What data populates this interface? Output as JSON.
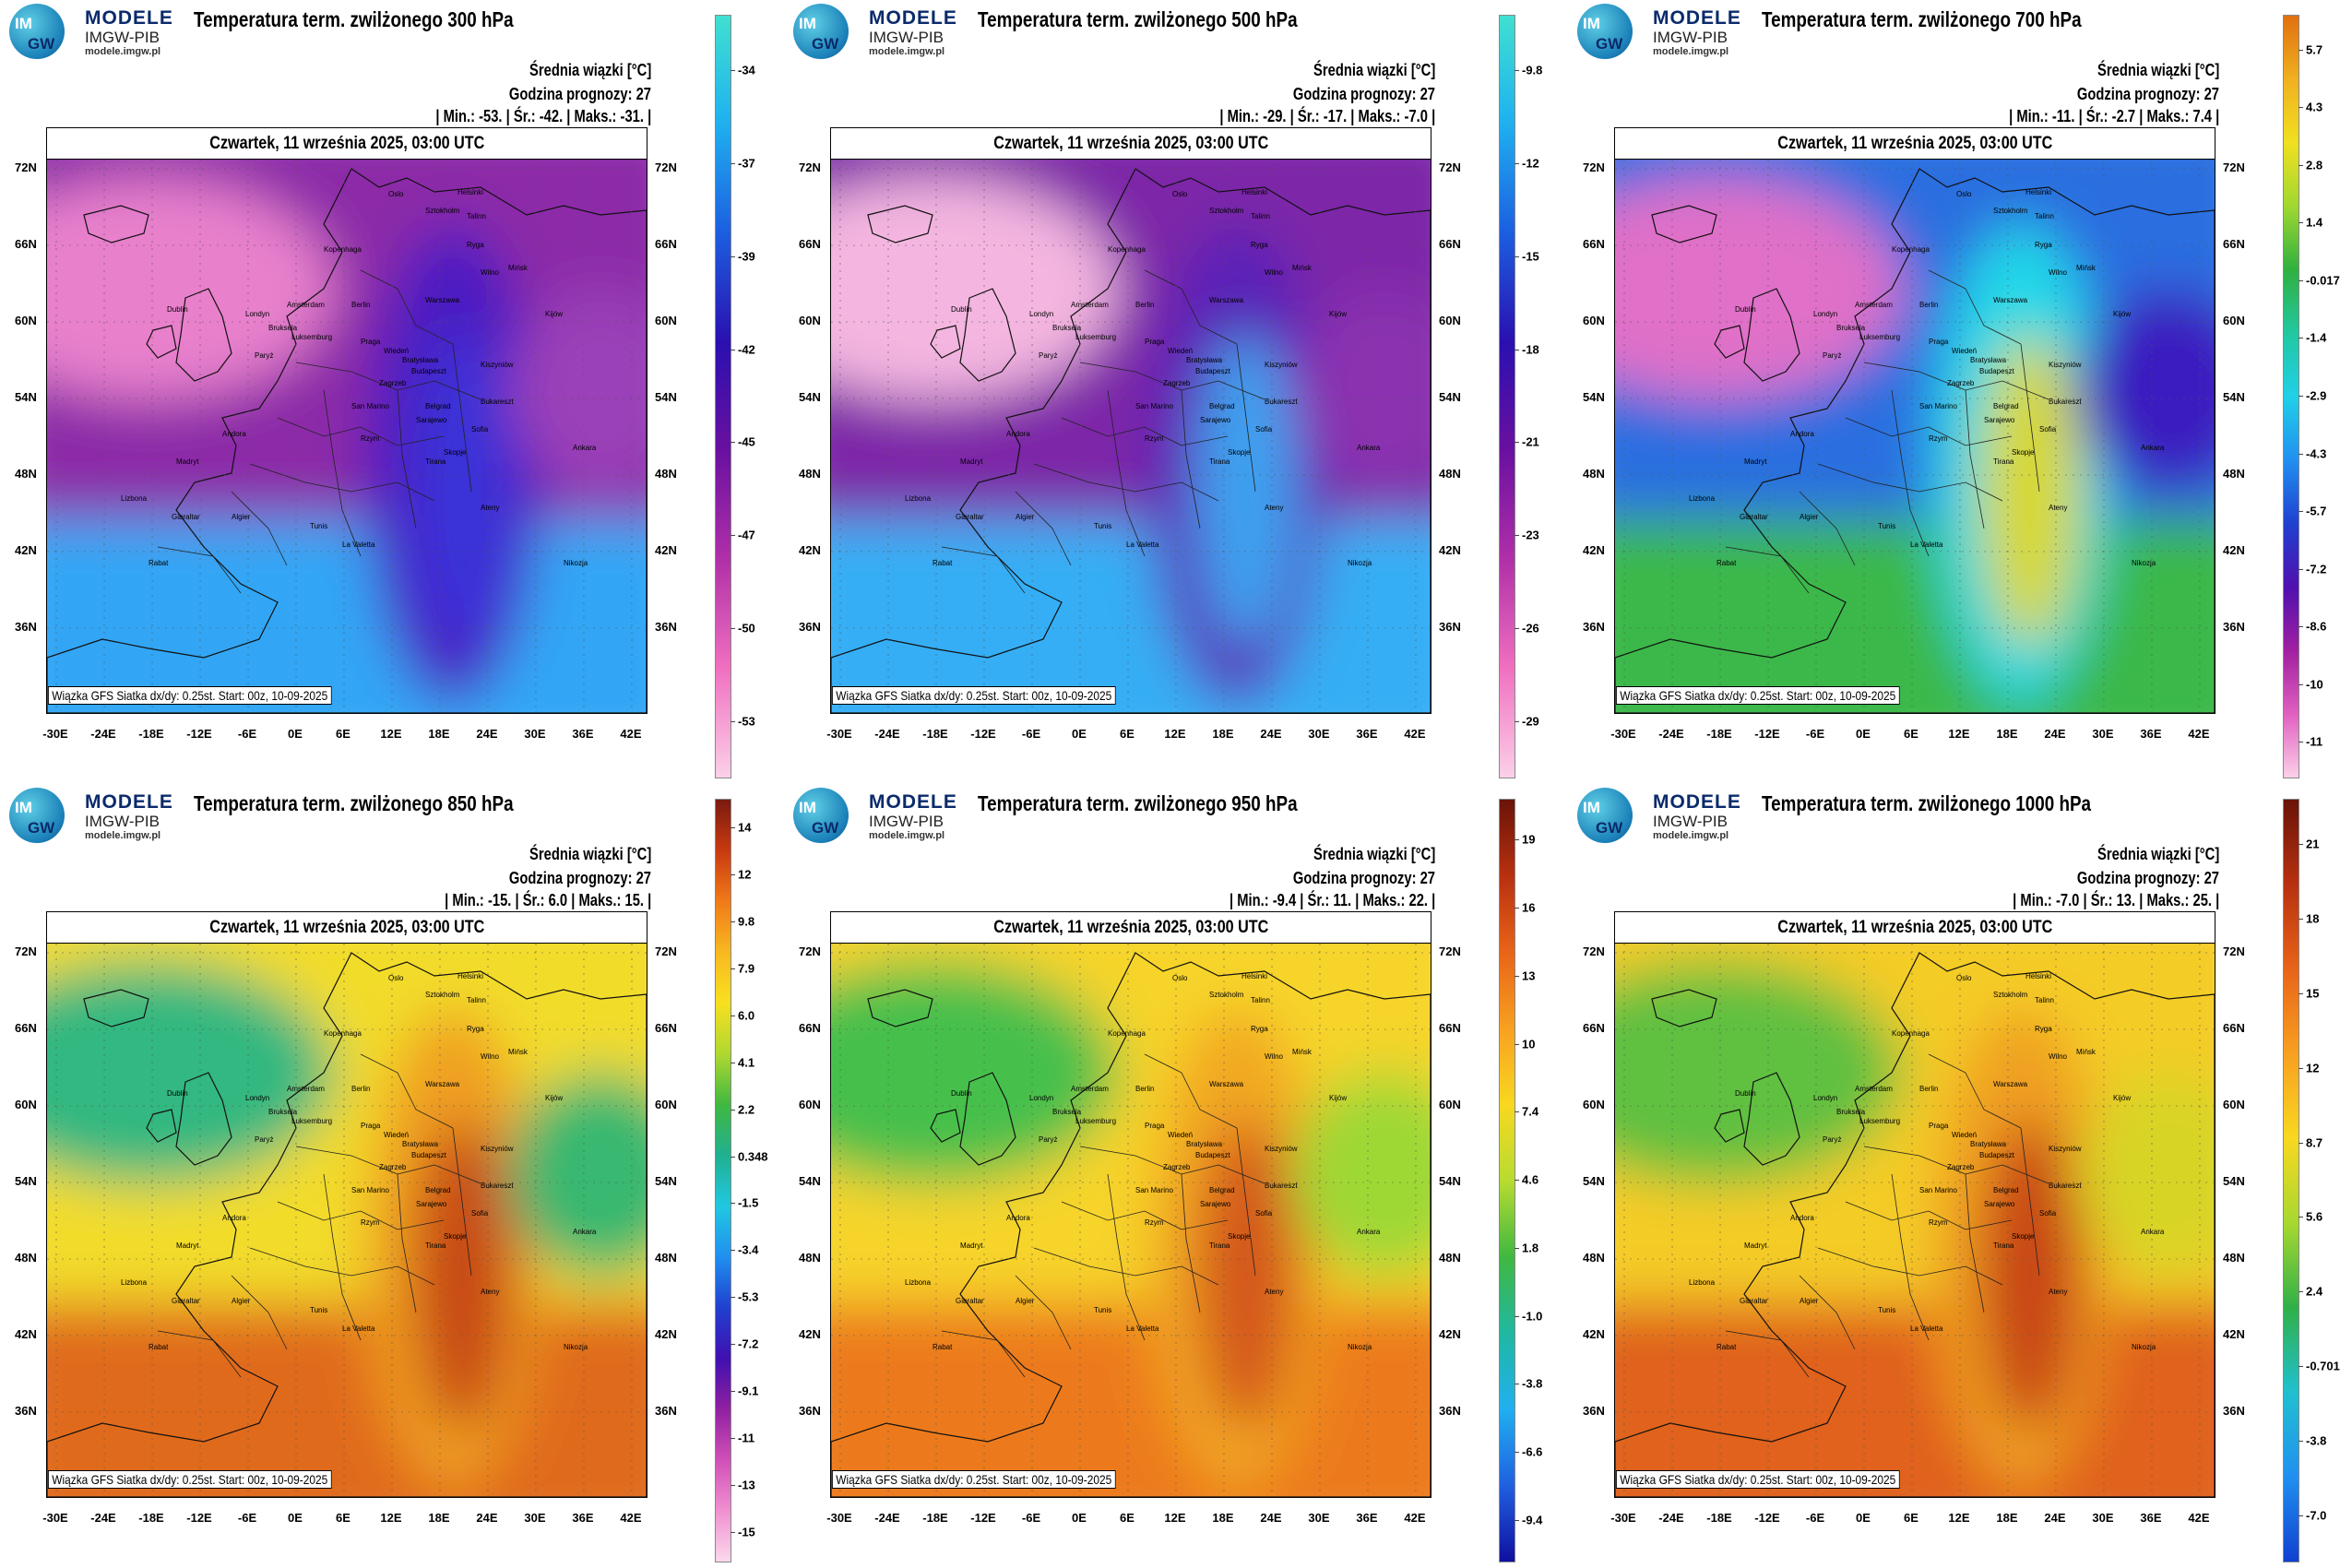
{
  "logo": {
    "abbr1": "IM",
    "abbr2": "GW",
    "line1": "MODELE",
    "line2": "IMGW-PIB",
    "line3": "modele.imgw.pl"
  },
  "common": {
    "meta_title": "Średnia wiązki [°C]",
    "forecast_hour": "Godzina prognozy: 27",
    "date": "Czwartek, 11 września 2025, 03:00 UTC",
    "footer": "Wiązka GFS Siatka dx/dy: 0.25st. Start: 00z, 10-09-2025",
    "lat_labels": [
      "72N",
      "66N",
      "60N",
      "54N",
      "48N",
      "42N",
      "36N"
    ],
    "lon_labels": [
      "-30E",
      "-24E",
      "-18E",
      "-12E",
      "-6E",
      "0E",
      "6E",
      "12E",
      "18E",
      "24E",
      "30E",
      "36E",
      "42E"
    ]
  },
  "cities": [
    "Oslo",
    "Helsinki",
    "Sztokholm",
    "Talinn",
    "Ryga",
    "Wilno",
    "Mińsk",
    "Kijów",
    "Warszawa",
    "Berlin",
    "Amsterdam",
    "Londyn",
    "Bruksela",
    "Luksemburg",
    "Paryż",
    "Praga",
    "Wiedeń",
    "Bratysława",
    "Budapeszt",
    "Kiszyniów",
    "Bukareszt",
    "Belgrad",
    "Sofia",
    "Zagrzeb",
    "Sarajewo",
    "San Marino",
    "Rzym",
    "Skopje",
    "Tirana",
    "Ateny",
    "Madryt",
    "Lizbona",
    "Andora",
    "Gibraltar",
    "Algier",
    "Tunis",
    "La Valetta",
    "Rabat",
    "Ankara",
    "Nikozja",
    "Kopenhaga",
    "Dublin"
  ],
  "panels": [
    {
      "title": "Temperatura term. zwilżonego 300 hPa",
      "min": "-53.",
      "avg": "-42.",
      "max": "-31.",
      "cbar_labels": [
        "-34",
        "-37",
        "-39",
        "-42",
        "-45",
        "-47",
        "-50",
        "-53"
      ],
      "cbar_colors": [
        "#40e0d0",
        "#1fb0f0",
        "#1c5ee0",
        "#2a10b0",
        "#6a10a0",
        "#b030a8",
        "#f070c0",
        "#fbd0e8"
      ],
      "colors": {
        "base": "#8c2ba8",
        "north_west": "#e880cc",
        "south": "#33a6f5",
        "belt": "#4b1bc2",
        "belt_core": "#3a30d8",
        "ne": "#9a3fb8"
      }
    },
    {
      "title": "Temperatura term. zwilżonego 500 hPa",
      "min": "-29.",
      "avg": "-17.",
      "max": "-7.0",
      "cbar_labels": [
        "-9.8",
        "-12",
        "-15",
        "-18",
        "-21",
        "-23",
        "-26",
        "-29"
      ],
      "cbar_colors": [
        "#40e0d0",
        "#1fb0f0",
        "#1c5ee0",
        "#2a10b0",
        "#6a10a0",
        "#b030a8",
        "#f070c0",
        "#fbd0e8"
      ],
      "colors": {
        "base": "#7d27a8",
        "north_west": "#f4b6e0",
        "south": "#35aef5",
        "belt": "#5a23b8",
        "belt_core": "#3ea0f0",
        "ne": "#8a30b0"
      }
    },
    {
      "title": "Temperatura term. zwilżonego 700 hPa",
      "min": "-11.",
      "avg": "-2.7",
      "max": "7.4",
      "cbar_labels": [
        "5.7",
        "4.3",
        "2.8",
        "1.4",
        "-0.017",
        "-1.4",
        "-2.9",
        "-4.3",
        "-5.7",
        "-7.2",
        "-8.6",
        "-10",
        "-11"
      ],
      "cbar_colors": [
        "#e07010",
        "#f0b020",
        "#f0e020",
        "#a0d830",
        "#30b040",
        "#20c8a0",
        "#20d0e8",
        "#2090f0",
        "#2040d0",
        "#5010b0",
        "#a020a0",
        "#e060c0",
        "#fbd0e8"
      ],
      "colors": {
        "base": "#2b6ee0",
        "north_west": "#e070c8",
        "south": "#3ab84a",
        "belt": "#20d8e8",
        "belt_core": "#d8d828",
        "ne": "#3b1cc0"
      }
    },
    {
      "title": "Temperatura term. zwilżonego 850 hPa",
      "min": "-15.",
      "avg": "6.0",
      "max": "15.",
      "cbar_labels": [
        "14",
        "12",
        "9.8",
        "7.9",
        "6.0",
        "4.1",
        "2.2",
        "0.348",
        "-1.5",
        "-3.4",
        "-5.3",
        "-7.2",
        "-9.1",
        "-11",
        "-13",
        "-15"
      ],
      "cbar_colors": [
        "#7a1a10",
        "#c83a10",
        "#f07a18",
        "#f8b820",
        "#f8e020",
        "#b0d830",
        "#40b840",
        "#20b090",
        "#20c8e0",
        "#2090f0",
        "#2040d0",
        "#4010b0",
        "#9020a0",
        "#d050b8",
        "#f090d0",
        "#fbd8ec"
      ],
      "colors": {
        "base": "#f2dc2a",
        "north_west": "#30b880",
        "south": "#e06a1a",
        "belt": "#f0a020",
        "belt_core": "#c84a14",
        "ne": "#38b870"
      }
    },
    {
      "title": "Temperatura term. zwilżonego 950 hPa",
      "min": "-9.4",
      "avg": "11.",
      "max": "22.",
      "cbar_labels": [
        "19",
        "16",
        "13",
        "10",
        "7.4",
        "4.6",
        "1.8",
        "-1.0",
        "-3.8",
        "-6.6",
        "-9.4"
      ],
      "cbar_colors": [
        "#6a1408",
        "#b83010",
        "#e86418",
        "#f8a020",
        "#f8d820",
        "#b8dc30",
        "#40b840",
        "#20b8a0",
        "#20b0f0",
        "#2060e0",
        "#1010a0"
      ],
      "colors": {
        "base": "#f6d42a",
        "north_west": "#46c04c",
        "south": "#ec7a1a",
        "belt": "#f2a822",
        "belt_core": "#d4561a",
        "ne": "#9ed836"
      }
    },
    {
      "title": "Temperatura term. zwilżonego 1000 hPa",
      "min": "-7.0",
      "avg": "13.",
      "max": "25.",
      "cbar_labels": [
        "21",
        "18",
        "15",
        "12",
        "8.7",
        "5.6",
        "2.4",
        "-0.701",
        "-3.8",
        "-7.0"
      ],
      "cbar_colors": [
        "#6a1408",
        "#b83010",
        "#e86418",
        "#f8a020",
        "#f8d820",
        "#a8d830",
        "#30b048",
        "#20c0d0",
        "#2090f0",
        "#1040d0"
      ],
      "colors": {
        "base": "#f4cc26",
        "north_west": "#60c040",
        "south": "#e0621a",
        "belt": "#f0a020",
        "belt_core": "#c84414",
        "ne": "#d8d428"
      }
    }
  ]
}
